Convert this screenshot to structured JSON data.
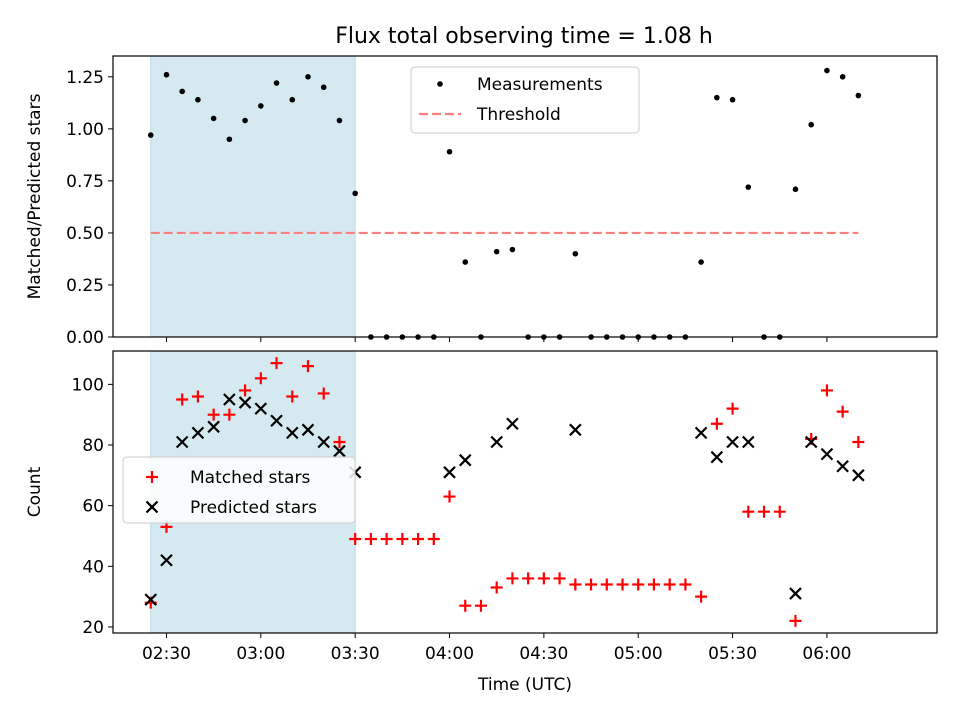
{
  "chart_data": [
    {
      "type": "scatter",
      "title": "Flux total observing time = 1.08 h",
      "ylabel": "Matched/Predicted stars",
      "xlabel": "",
      "ylim": [
        0,
        1.35
      ],
      "yticks": [
        0.0,
        0.25,
        0.5,
        0.75,
        1.0,
        1.25
      ],
      "ytick_labels": [
        "0.00",
        "0.25",
        "0.50",
        "0.75",
        "1.00",
        "1.25"
      ],
      "shaded_region": {
        "x_start": "02:25",
        "x_end": "03:30",
        "color": "#d4eaf0"
      },
      "legend_position": "upper-center",
      "series": [
        {
          "name": "Measurements",
          "marker": "dot",
          "color": "#000000",
          "points": [
            [
              "02:25",
              0.97
            ],
            [
              "02:30",
              1.26
            ],
            [
              "02:35",
              1.18
            ],
            [
              "02:40",
              1.14
            ],
            [
              "02:45",
              1.05
            ],
            [
              "02:50",
              0.95
            ],
            [
              "02:55",
              1.04
            ],
            [
              "03:00",
              1.11
            ],
            [
              "03:05",
              1.22
            ],
            [
              "03:10",
              1.14
            ],
            [
              "03:15",
              1.25
            ],
            [
              "03:20",
              1.2
            ],
            [
              "03:25",
              1.04
            ],
            [
              "03:30",
              0.69
            ],
            [
              "03:35",
              0.0
            ],
            [
              "03:40",
              0.0
            ],
            [
              "03:45",
              0.0
            ],
            [
              "03:50",
              0.0
            ],
            [
              "03:55",
              0.0
            ],
            [
              "04:00",
              0.89
            ],
            [
              "04:05",
              0.36
            ],
            [
              "04:10",
              0.0
            ],
            [
              "04:15",
              0.41
            ],
            [
              "04:20",
              0.42
            ],
            [
              "04:25",
              0.0
            ],
            [
              "04:30",
              0.0
            ],
            [
              "04:35",
              0.0
            ],
            [
              "04:40",
              0.4
            ],
            [
              "04:45",
              0.0
            ],
            [
              "04:50",
              0.0
            ],
            [
              "04:55",
              0.0
            ],
            [
              "05:00",
              0.0
            ],
            [
              "05:05",
              0.0
            ],
            [
              "05:10",
              0.0
            ],
            [
              "05:15",
              0.0
            ],
            [
              "05:20",
              0.36
            ],
            [
              "05:25",
              1.15
            ],
            [
              "05:30",
              1.14
            ],
            [
              "05:35",
              0.72
            ],
            [
              "05:40",
              0.0
            ],
            [
              "05:45",
              0.0
            ],
            [
              "05:50",
              0.71
            ],
            [
              "05:55",
              1.02
            ],
            [
              "06:00",
              1.28
            ],
            [
              "06:05",
              1.25
            ],
            [
              "06:10",
              1.16
            ]
          ]
        },
        {
          "name": "Threshold",
          "marker": "dashed-line",
          "color": "#ff7f7f",
          "points": [
            [
              "02:25",
              0.5
            ],
            [
              "06:10",
              0.5
            ]
          ]
        }
      ]
    },
    {
      "type": "scatter",
      "title": "",
      "ylabel": "Count",
      "xlabel": "Time (UTC)",
      "ylim": [
        18,
        111
      ],
      "yticks": [
        20,
        40,
        60,
        80,
        100
      ],
      "ytick_labels": [
        "20",
        "40",
        "60",
        "80",
        "100"
      ],
      "xlim": [
        "02:13",
        "06:35"
      ],
      "xticks": [
        "02:30",
        "03:00",
        "03:30",
        "04:00",
        "04:30",
        "05:00",
        "05:30",
        "06:00"
      ],
      "xtick_labels": [
        "02:30",
        "03:00",
        "03:30",
        "04:00",
        "04:30",
        "05:00",
        "05:30",
        "06:00"
      ],
      "shaded_region": {
        "x_start": "02:25",
        "x_end": "03:30",
        "color": "#d4eaf0"
      },
      "legend_position": "center-left",
      "series": [
        {
          "name": "Matched stars",
          "marker": "plus",
          "color": "#ff0000",
          "points": [
            [
              "02:25",
              28
            ],
            [
              "02:30",
              53
            ],
            [
              "02:35",
              95
            ],
            [
              "02:40",
              96
            ],
            [
              "02:45",
              90
            ],
            [
              "02:50",
              90
            ],
            [
              "02:55",
              98
            ],
            [
              "03:00",
              102
            ],
            [
              "03:05",
              107
            ],
            [
              "03:10",
              96
            ],
            [
              "03:15",
              106
            ],
            [
              "03:20",
              97
            ],
            [
              "03:25",
              81
            ],
            [
              "03:30",
              49
            ],
            [
              "03:35",
              49
            ],
            [
              "03:40",
              49
            ],
            [
              "03:45",
              49
            ],
            [
              "03:50",
              49
            ],
            [
              "03:55",
              49
            ],
            [
              "04:00",
              63
            ],
            [
              "04:05",
              27
            ],
            [
              "04:10",
              27
            ],
            [
              "04:15",
              33
            ],
            [
              "04:20",
              36
            ],
            [
              "04:25",
              36
            ],
            [
              "04:30",
              36
            ],
            [
              "04:35",
              36
            ],
            [
              "04:40",
              34
            ],
            [
              "04:45",
              34
            ],
            [
              "04:50",
              34
            ],
            [
              "04:55",
              34
            ],
            [
              "05:00",
              34
            ],
            [
              "05:05",
              34
            ],
            [
              "05:10",
              34
            ],
            [
              "05:15",
              34
            ],
            [
              "05:20",
              30
            ],
            [
              "05:25",
              87
            ],
            [
              "05:30",
              92
            ],
            [
              "05:35",
              58
            ],
            [
              "05:40",
              58
            ],
            [
              "05:45",
              58
            ],
            [
              "05:50",
              22
            ],
            [
              "05:55",
              82
            ],
            [
              "06:00",
              98
            ],
            [
              "06:05",
              91
            ],
            [
              "06:10",
              81
            ]
          ]
        },
        {
          "name": "Predicted stars",
          "marker": "x",
          "color": "#000000",
          "points": [
            [
              "02:25",
              29
            ],
            [
              "02:30",
              42
            ],
            [
              "02:35",
              81
            ],
            [
              "02:40",
              84
            ],
            [
              "02:45",
              86
            ],
            [
              "02:50",
              95
            ],
            [
              "02:55",
              94
            ],
            [
              "03:00",
              92
            ],
            [
              "03:05",
              88
            ],
            [
              "03:10",
              84
            ],
            [
              "03:15",
              85
            ],
            [
              "03:20",
              81
            ],
            [
              "03:25",
              78
            ],
            [
              "03:30",
              71
            ],
            [
              "04:00",
              71
            ],
            [
              "04:05",
              75
            ],
            [
              "04:15",
              81
            ],
            [
              "04:20",
              87
            ],
            [
              "04:40",
              85
            ],
            [
              "05:20",
              84
            ],
            [
              "05:25",
              76
            ],
            [
              "05:30",
              81
            ],
            [
              "05:35",
              81
            ],
            [
              "05:50",
              31
            ],
            [
              "05:55",
              81
            ],
            [
              "06:00",
              77
            ],
            [
              "06:05",
              73
            ],
            [
              "06:10",
              70
            ]
          ]
        }
      ]
    }
  ]
}
